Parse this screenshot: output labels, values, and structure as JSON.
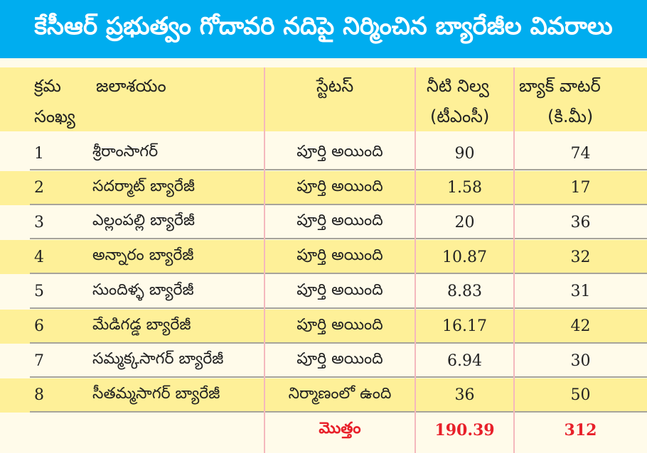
{
  "title": "కేసీఆర్ ప్రభుత్వం గోదావరి నదిపై నిర్మించిన బ్యారేజీల వివరాలు",
  "headers": {
    "serial_line1": "క్రమ",
    "serial_line2": "సంఖ్య",
    "reservoir": "జలాశయం",
    "status": "స్టేటస్",
    "storage_line1": "నీటి నిల్వ",
    "storage_line2": "(టీఎంసీ)",
    "backwater_line1": "బ్యాక్ వాటర్",
    "backwater_line2": "(కి.మీ)"
  },
  "rows": [
    {
      "no": "1",
      "name": "శ్రీరాంసాగర్",
      "status": "పూర్తి అయింది",
      "storage": "90",
      "backwater": "74"
    },
    {
      "no": "2",
      "name": "సదర్మాట్ బ్యారేజీ",
      "status": "పూర్తి అయింది",
      "storage": "1.58",
      "backwater": "17"
    },
    {
      "no": "3",
      "name": "ఎల్లంపల్లి బ్యారేజీ",
      "status": "పూర్తి అయింది",
      "storage": "20",
      "backwater": "36"
    },
    {
      "no": "4",
      "name": "అన్నారం బ్యారేజీ",
      "status": "పూర్తి అయింది",
      "storage": "10.87",
      "backwater": "32"
    },
    {
      "no": "5",
      "name": "సుందిళ్ళ బ్యారేజీ",
      "status": "పూర్తి అయింది",
      "storage": "8.83",
      "backwater": "31"
    },
    {
      "no": "6",
      "name": "మేడిగడ్డ బ్యారేజీ",
      "status": "పూర్తి అయింది",
      "storage": "16.17",
      "backwater": "42"
    },
    {
      "no": "7",
      "name": "సమ్మక్కసాగర్ బ్యారేజీ",
      "status": "పూర్తి అయింది",
      "storage": "6.94",
      "backwater": "30"
    },
    {
      "no": "8",
      "name": "సీతమ్మసాగర్ బ్యారేజీ",
      "status": "నిర్మాణంలో ఉంది",
      "storage": "36",
      "backwater": "50"
    }
  ],
  "total": {
    "label": "మొత్తం",
    "storage": "190.39",
    "backwater": "312"
  },
  "colors": {
    "title_bg": "#00adef",
    "row_alt": "#fef098",
    "row_bg": "#fffbea",
    "total_text": "#e8202a"
  }
}
